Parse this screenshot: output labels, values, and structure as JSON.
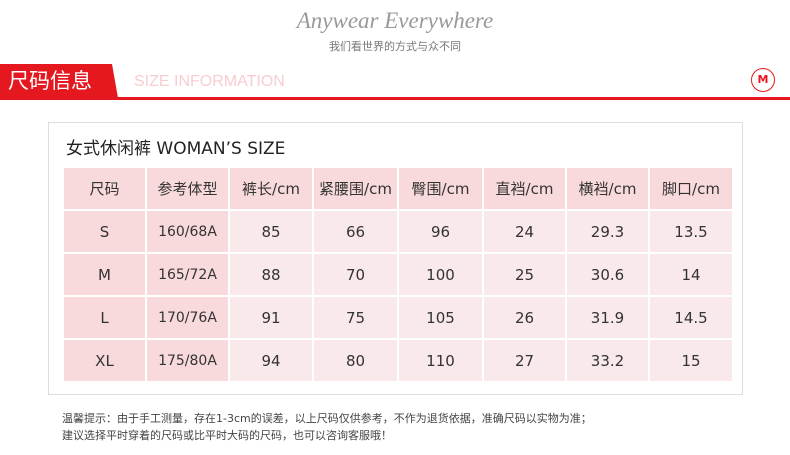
{
  "header": {
    "slogan": "Anywear Everywhere",
    "subtitle": "我们看世界的方式与众不同"
  },
  "banner": {
    "title": "尺码信息",
    "english": "SIZE INFORMATION",
    "logo": "M",
    "accent": "#e5171f"
  },
  "table": {
    "title": "女式休闲裤 WOMAN’S SIZE",
    "columns": [
      "尺码",
      "参考体型",
      "裤长/cm",
      "紧腰围/cm",
      "臀围/cm",
      "直裆/cm",
      "横裆/cm",
      "脚口/cm"
    ],
    "rows": [
      [
        "S",
        "160/68A",
        "85",
        "66",
        "96",
        "24",
        "29.3",
        "13.5"
      ],
      [
        "M",
        "165/72A",
        "88",
        "70",
        "100",
        "25",
        "30.6",
        "14"
      ],
      [
        "L",
        "170/76A",
        "91",
        "75",
        "105",
        "26",
        "31.9",
        "14.5"
      ],
      [
        "XL",
        "175/80A",
        "94",
        "80",
        "110",
        "27",
        "33.2",
        "15"
      ]
    ]
  },
  "footer": {
    "line1": "温馨提示：由于手工测量，存在1-3cm的误差，以上尺码仅供参考，不作为退货依据，准确尺码以实物为准；",
    "line2": "建议选择平时穿着的尺码或比平时大码的尺码，也可以咨询客服哦！"
  }
}
